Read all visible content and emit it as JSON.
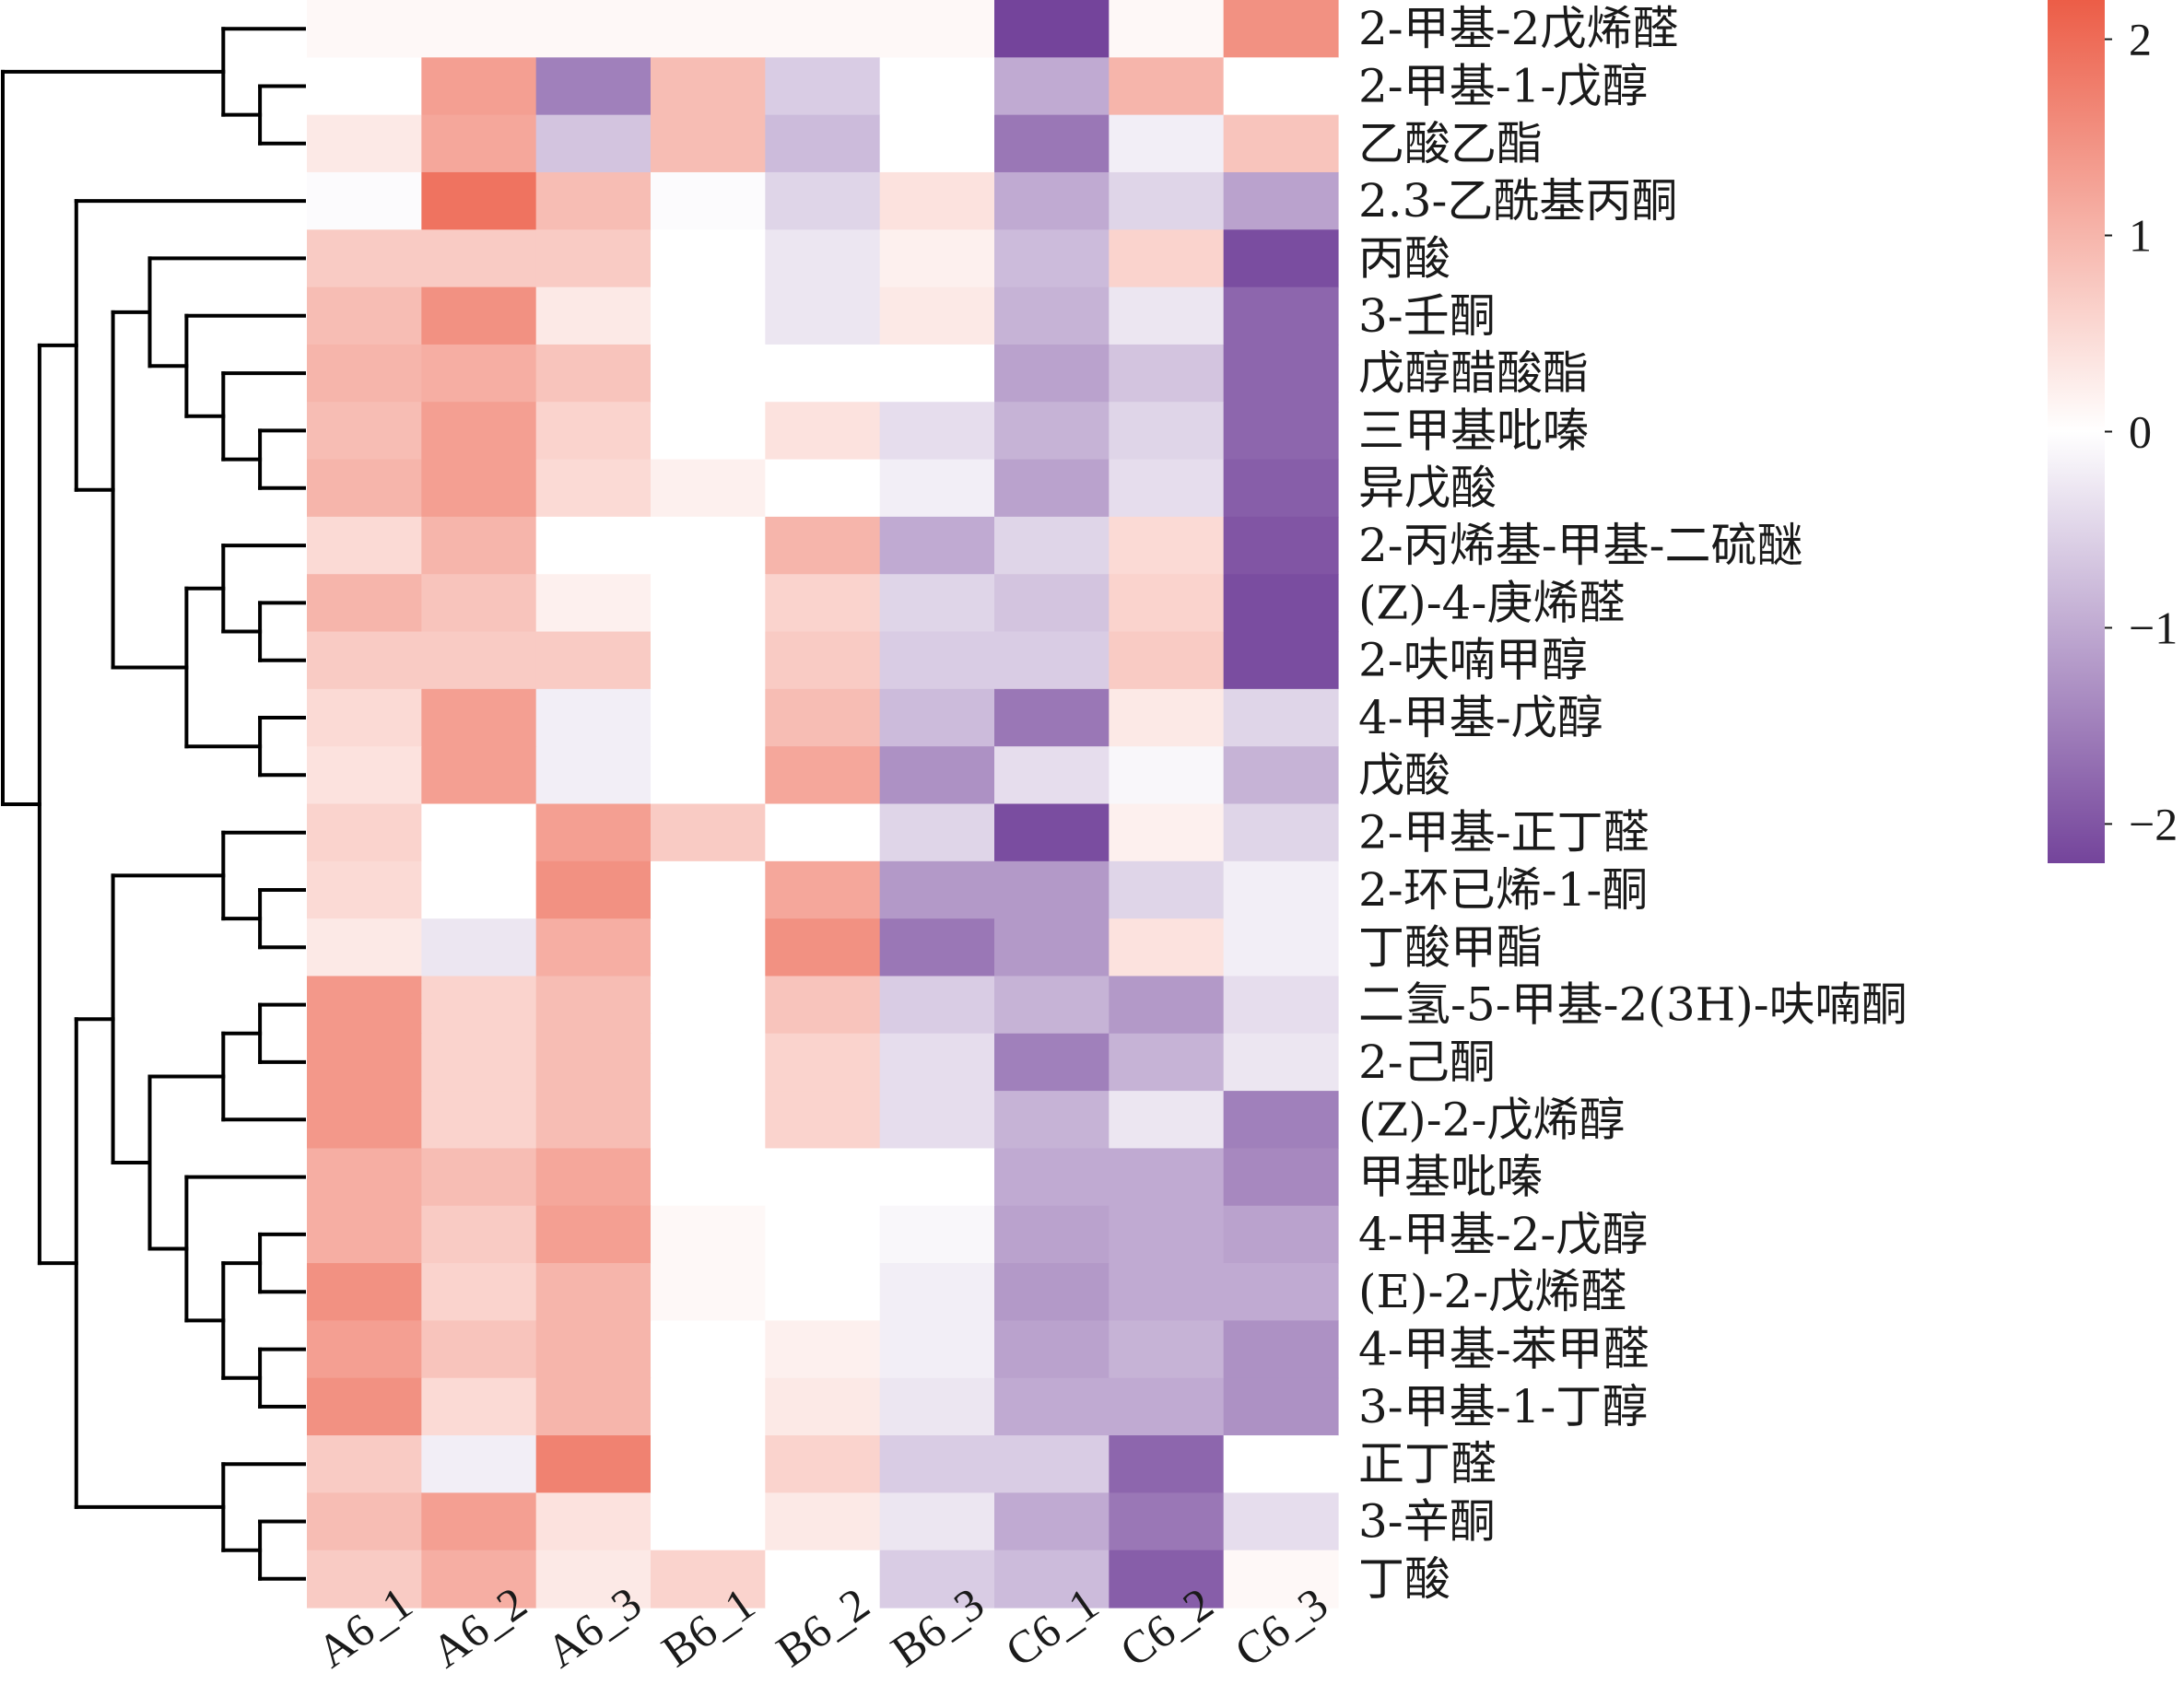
{
  "chart_data": {
    "type": "heatmap",
    "columns": [
      "A6_1",
      "A6_2",
      "A6_3",
      "B6_1",
      "B6_2",
      "B6_3",
      "C6_1",
      "C6_2",
      "C6_3"
    ],
    "rows": [
      "2-甲基-2戊烯醛",
      "2-甲基-1-戊醇",
      "乙酸乙酯",
      "2.3-乙酰基丙酮",
      "丙酸",
      "3-壬酮",
      "戊醇醋酸酯",
      "三甲基吡嗪",
      "异戊酸",
      "2-丙烯基-甲基-二硫醚",
      "(Z)-4-庚烯醛",
      "2-呋喃甲醇",
      "4-甲基-戊醇",
      "戊酸",
      "2-甲基-正丁醛",
      "2-环已烯-1-酮",
      "丁酸甲酯",
      "二氢-5-甲基-2(3H)-呋喃酮",
      "2-己酮",
      "(Z)-2-戊烯醇",
      "甲基吡嗪",
      "4-甲基-2-戊醇",
      "(E)-2-戊烯醛",
      "4-甲基-苯甲醛",
      "3-甲基-1-丁醇",
      "正丁醛",
      "3-辛酮",
      "丁酸"
    ],
    "values": [
      [
        0.1,
        0.1,
        0.1,
        0.1,
        0.1,
        0.1,
        -2.2,
        0.1,
        1.5
      ],
      [
        0.0,
        1.3,
        -1.5,
        0.9,
        -0.6,
        0.0,
        -1.0,
        1.0,
        0.0
      ],
      [
        0.3,
        1.2,
        -0.7,
        0.9,
        -0.8,
        0.0,
        -1.6,
        -0.2,
        0.8
      ],
      [
        -0.05,
        1.9,
        0.9,
        -0.05,
        -0.5,
        0.4,
        -1.0,
        -0.5,
        -1.1
      ],
      [
        0.7,
        0.7,
        0.7,
        0.0,
        -0.3,
        0.2,
        -0.8,
        0.6,
        -2.1
      ],
      [
        0.9,
        1.5,
        0.3,
        0.0,
        -0.3,
        0.3,
        -0.9,
        -0.3,
        -1.8
      ],
      [
        1.0,
        1.1,
        0.8,
        0.0,
        0.0,
        0.0,
        -1.1,
        -0.7,
        -1.8
      ],
      [
        0.9,
        1.3,
        0.6,
        0.0,
        0.4,
        -0.4,
        -0.9,
        -0.5,
        -1.8
      ],
      [
        1.0,
        1.3,
        0.5,
        0.2,
        0.0,
        -0.2,
        -1.1,
        -0.4,
        -1.9
      ],
      [
        0.5,
        1.0,
        0.0,
        0.0,
        1.0,
        -1.0,
        -0.5,
        0.5,
        -2.0
      ],
      [
        1.0,
        0.8,
        0.2,
        0.0,
        0.6,
        -0.5,
        -0.7,
        0.6,
        -2.1
      ],
      [
        0.7,
        0.7,
        0.7,
        0.0,
        0.7,
        -0.6,
        -0.6,
        0.7,
        -2.1
      ],
      [
        0.5,
        1.3,
        -0.2,
        0.0,
        0.9,
        -0.8,
        -1.6,
        0.3,
        -0.5
      ],
      [
        0.4,
        1.3,
        -0.2,
        0.0,
        1.2,
        -1.3,
        -0.4,
        -0.1,
        -0.9
      ],
      [
        0.6,
        0.0,
        1.3,
        0.7,
        0.0,
        -0.5,
        -2.1,
        0.2,
        -0.5
      ],
      [
        0.5,
        0.0,
        1.5,
        0.0,
        1.2,
        -1.2,
        -1.2,
        -0.5,
        -0.2
      ],
      [
        0.3,
        -0.3,
        1.1,
        0.0,
        1.5,
        -1.6,
        -1.2,
        0.4,
        -0.2
      ],
      [
        1.4,
        0.6,
        0.9,
        0.0,
        0.8,
        -0.6,
        -0.9,
        -1.2,
        -0.4
      ],
      [
        1.4,
        0.6,
        0.9,
        0.0,
        0.6,
        -0.4,
        -1.5,
        -0.9,
        -0.3
      ],
      [
        1.4,
        0.6,
        0.9,
        0.0,
        0.6,
        -0.4,
        -0.9,
        -0.3,
        -1.5
      ],
      [
        1.1,
        0.9,
        1.2,
        0.0,
        0.0,
        0.0,
        -1.0,
        -1.0,
        -1.4
      ],
      [
        1.1,
        0.7,
        1.3,
        0.1,
        0.0,
        -0.1,
        -1.1,
        -1.0,
        -1.1
      ],
      [
        1.5,
        0.6,
        1.0,
        0.1,
        0.0,
        -0.2,
        -1.2,
        -1.0,
        -1.0
      ],
      [
        1.3,
        0.8,
        1.0,
        0.0,
        0.2,
        -0.2,
        -1.1,
        -0.9,
        -1.3
      ],
      [
        1.5,
        0.5,
        1.0,
        0.0,
        0.3,
        -0.3,
        -1.0,
        -1.0,
        -1.3
      ],
      [
        0.7,
        -0.2,
        1.7,
        0.0,
        0.6,
        -0.6,
        -0.6,
        -1.8,
        0.0
      ],
      [
        0.9,
        1.3,
        0.4,
        0.0,
        0.3,
        -0.3,
        -1.0,
        -1.6,
        -0.4
      ],
      [
        0.7,
        1.1,
        0.3,
        0.6,
        0.0,
        -0.6,
        -0.8,
        -1.9,
        0.1
      ]
    ],
    "colorbar": {
      "min": -2.2,
      "max": 2.2,
      "ticks": [
        2,
        1,
        0,
        -1,
        -2
      ],
      "tick_labels": [
        "2",
        "1",
        "0",
        "−1",
        "−2"
      ],
      "low_color": "#74449b",
      "mid_color": "#ffffff",
      "high_color": "#ec5d47"
    },
    "row_dendrogram": true,
    "legend_position": "top-right"
  }
}
